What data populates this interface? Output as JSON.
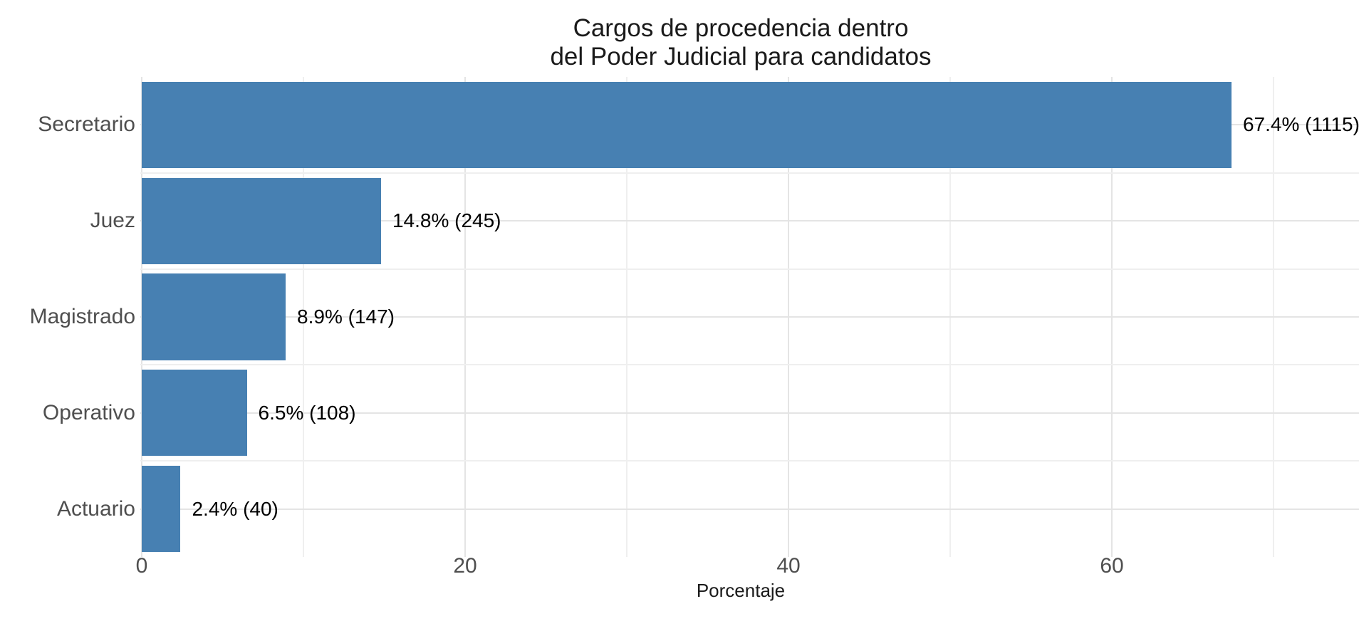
{
  "chart_data": {
    "type": "bar",
    "orientation": "horizontal",
    "title": "Cargos de procedencia dentro\ndel Poder Judicial para candidatos",
    "xlabel": "Porcentaje",
    "ylabel": "",
    "categories": [
      "Secretario",
      "Juez",
      "Magistrado",
      "Operativo",
      "Actuario"
    ],
    "values": [
      67.4,
      14.8,
      8.9,
      6.5,
      2.4
    ],
    "counts": [
      1115,
      245,
      147,
      108,
      40
    ],
    "bar_labels": [
      "67.4% (1115)",
      "14.8% (245)",
      "8.9% (147)",
      "6.5% (108)",
      "2.4% (40)"
    ],
    "x_ticks": [
      0,
      20,
      40,
      60
    ],
    "x_tick_labels": [
      "0",
      "20",
      "40",
      "60"
    ],
    "x_minor_ticks": [
      10,
      30,
      50,
      70
    ],
    "xlim": [
      0,
      75.3
    ],
    "grid": true,
    "legend": false,
    "colors": {
      "bar": "#4780B2",
      "grid_major": "#E4E4E4",
      "grid_minor": "#EFEFEF",
      "axis_text": "#4F4F4F",
      "bar_label_text": "#000000",
      "title_text": "#1A1A1A",
      "background": "#FFFFFF"
    }
  }
}
